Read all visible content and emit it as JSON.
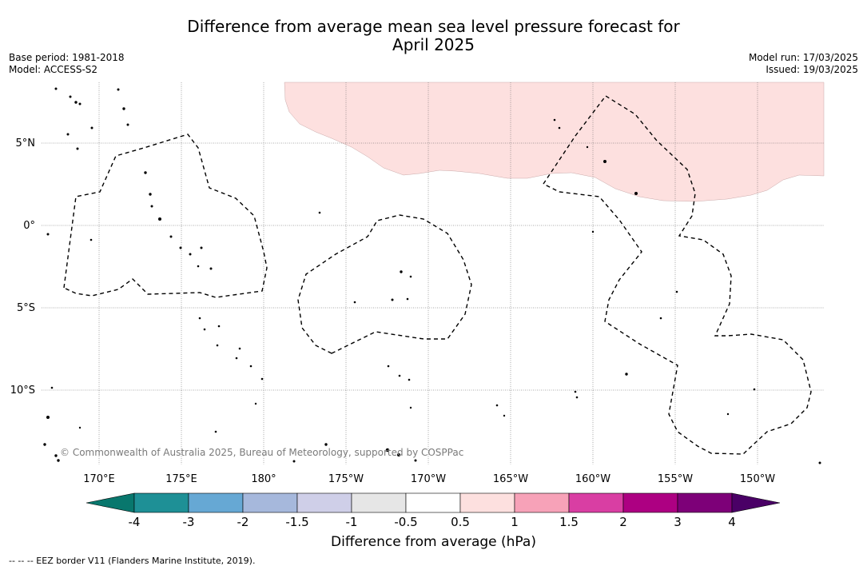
{
  "title_line1": "Difference from average mean sea level pressure forecast for",
  "title_line2": "April 2025",
  "base_period": "Base period: 1981-2018",
  "model": "Model: ACCESS-S2",
  "model_run": "Model run: 17/03/2025",
  "issued": "Issued: 19/03/2025",
  "copyright": "© Commonwealth of Australia 2025, Bureau of Meteorology, supported by COSPPac",
  "lon_labels": [
    "170°E",
    "175°E",
    "180°",
    "175°W",
    "170°W",
    "165°W",
    "160°W",
    "155°W",
    "150°W"
  ],
  "lat_labels": [
    "5°N",
    "0°",
    "5°S",
    "10°S"
  ],
  "colorbar": {
    "label": "Difference from average (hPa)",
    "ticks": [
      "-4",
      "-3",
      "-2",
      "-1.5",
      "-1",
      "-0.5",
      "0.5",
      "1",
      "1.5",
      "2",
      "3",
      "4"
    ],
    "colors": [
      "#08776d",
      "#1e9096",
      "#66a8d4",
      "#a6b8dc",
      "#cfcfe8",
      "#e6e6e6",
      "#ffffff",
      "#fde0df",
      "#f7a2b8",
      "#d93ea3",
      "#ad0082",
      "#7d0078",
      "#4a0066"
    ],
    "low_extend_color": "#08776d",
    "high_extend_color": "#4a0066"
  },
  "anomaly_region_color": "#fde0df",
  "eez_note": "--  --  -- EEZ border V11 (Flanders Marine Institute, 2019)."
}
